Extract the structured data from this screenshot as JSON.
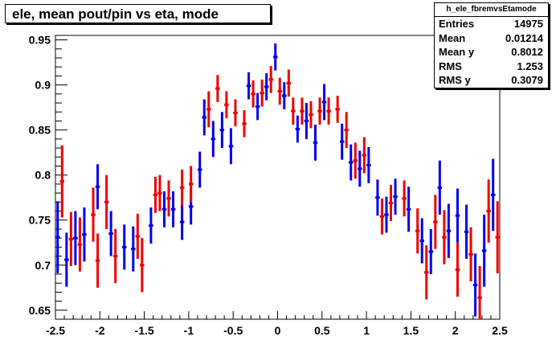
{
  "chart_data": {
    "type": "scatter",
    "title": "ele, mean pout/pin vs eta, mode",
    "xlabel": "",
    "ylabel": "",
    "xlim": [
      -2.5,
      2.5
    ],
    "ylim": [
      0.64,
      0.955
    ],
    "xticks": [
      "-2.5",
      "-2",
      "-1.5",
      "-1",
      "-0.5",
      "0",
      "0.5",
      "1",
      "1.5",
      "2",
      "2.5"
    ],
    "yticks": [
      "0.65",
      "0.7",
      "0.75",
      "0.8",
      "0.85",
      "0.9",
      "0.95"
    ],
    "bin_half_width": 0.025,
    "series": [
      {
        "color": "#0000ee",
        "points": [
          {
            "x": -2.475,
            "y": 0.731,
            "err": 0.04
          },
          {
            "x": -2.375,
            "y": 0.706,
            "err": 0.03
          },
          {
            "x": -2.275,
            "y": 0.73,
            "err": 0.03
          },
          {
            "x": -2.175,
            "y": 0.734,
            "err": 0.03
          },
          {
            "x": -2.025,
            "y": 0.787,
            "err": 0.025
          },
          {
            "x": -1.875,
            "y": 0.735,
            "err": 0.025
          },
          {
            "x": -1.725,
            "y": 0.72,
            "err": 0.025
          },
          {
            "x": -1.625,
            "y": 0.718,
            "err": 0.025
          },
          {
            "x": -1.425,
            "y": 0.744,
            "err": 0.02
          },
          {
            "x": -1.275,
            "y": 0.762,
            "err": 0.02
          },
          {
            "x": -1.175,
            "y": 0.762,
            "err": 0.02
          },
          {
            "x": -1.075,
            "y": 0.748,
            "err": 0.02
          },
          {
            "x": -0.975,
            "y": 0.765,
            "err": 0.02
          },
          {
            "x": -0.875,
            "y": 0.806,
            "err": 0.02
          },
          {
            "x": -0.825,
            "y": 0.864,
            "err": 0.02
          },
          {
            "x": -0.725,
            "y": 0.84,
            "err": 0.02
          },
          {
            "x": -0.625,
            "y": 0.85,
            "err": 0.02
          },
          {
            "x": -0.525,
            "y": 0.832,
            "err": 0.02
          },
          {
            "x": -0.325,
            "y": 0.899,
            "err": 0.015
          },
          {
            "x": -0.225,
            "y": 0.876,
            "err": 0.015
          },
          {
            "x": -0.125,
            "y": 0.898,
            "err": 0.015
          },
          {
            "x": -0.025,
            "y": 0.931,
            "err": 0.015
          },
          {
            "x": 0.075,
            "y": 0.888,
            "err": 0.015
          },
          {
            "x": 0.225,
            "y": 0.851,
            "err": 0.015
          },
          {
            "x": 0.325,
            "y": 0.86,
            "err": 0.02
          },
          {
            "x": 0.425,
            "y": 0.836,
            "err": 0.02
          },
          {
            "x": 0.525,
            "y": 0.881,
            "err": 0.02
          },
          {
            "x": 0.725,
            "y": 0.837,
            "err": 0.02
          },
          {
            "x": 0.825,
            "y": 0.814,
            "err": 0.02
          },
          {
            "x": 0.925,
            "y": 0.807,
            "err": 0.02
          },
          {
            "x": 1.025,
            "y": 0.811,
            "err": 0.02
          },
          {
            "x": 1.125,
            "y": 0.775,
            "err": 0.02
          },
          {
            "x": 1.225,
            "y": 0.756,
            "err": 0.02
          },
          {
            "x": 1.325,
            "y": 0.776,
            "err": 0.02
          },
          {
            "x": 1.475,
            "y": 0.762,
            "err": 0.025
          },
          {
            "x": 1.625,
            "y": 0.727,
            "err": 0.025
          },
          {
            "x": 1.725,
            "y": 0.715,
            "err": 0.025
          },
          {
            "x": 1.825,
            "y": 0.786,
            "err": 0.03
          },
          {
            "x": 1.925,
            "y": 0.738,
            "err": 0.03
          },
          {
            "x": 2.025,
            "y": 0.755,
            "err": 0.03
          },
          {
            "x": 2.125,
            "y": 0.737,
            "err": 0.03
          },
          {
            "x": 2.225,
            "y": 0.678,
            "err": 0.035
          },
          {
            "x": 2.325,
            "y": 0.716,
            "err": 0.04
          },
          {
            "x": 2.425,
            "y": 0.778,
            "err": 0.04
          }
        ]
      },
      {
        "color": "#ee0000",
        "points": [
          {
            "x": -2.425,
            "y": 0.793,
            "err": 0.04
          },
          {
            "x": -2.325,
            "y": 0.729,
            "err": 0.03
          },
          {
            "x": -2.225,
            "y": 0.723,
            "err": 0.03
          },
          {
            "x": -2.075,
            "y": 0.756,
            "err": 0.03
          },
          {
            "x": -2.025,
            "y": 0.705,
            "err": 0.03
          },
          {
            "x": -1.925,
            "y": 0.77,
            "err": 0.03
          },
          {
            "x": -1.825,
            "y": 0.71,
            "err": 0.03
          },
          {
            "x": -1.575,
            "y": 0.732,
            "err": 0.025
          },
          {
            "x": -1.525,
            "y": 0.7,
            "err": 0.03
          },
          {
            "x": -1.375,
            "y": 0.778,
            "err": 0.02
          },
          {
            "x": -1.325,
            "y": 0.78,
            "err": 0.02
          },
          {
            "x": -1.225,
            "y": 0.774,
            "err": 0.02
          },
          {
            "x": -1.075,
            "y": 0.786,
            "err": 0.02
          },
          {
            "x": -0.975,
            "y": 0.79,
            "err": 0.02
          },
          {
            "x": -0.775,
            "y": 0.873,
            "err": 0.02
          },
          {
            "x": -0.675,
            "y": 0.896,
            "err": 0.015
          },
          {
            "x": -0.575,
            "y": 0.878,
            "err": 0.015
          },
          {
            "x": -0.475,
            "y": 0.869,
            "err": 0.015
          },
          {
            "x": -0.375,
            "y": 0.857,
            "err": 0.015
          },
          {
            "x": -0.275,
            "y": 0.89,
            "err": 0.015
          },
          {
            "x": -0.175,
            "y": 0.891,
            "err": 0.015
          },
          {
            "x": -0.075,
            "y": 0.906,
            "err": 0.015
          },
          {
            "x": 0.025,
            "y": 0.893,
            "err": 0.015
          },
          {
            "x": 0.125,
            "y": 0.902,
            "err": 0.015
          },
          {
            "x": 0.175,
            "y": 0.871,
            "err": 0.015
          },
          {
            "x": 0.275,
            "y": 0.871,
            "err": 0.015
          },
          {
            "x": 0.375,
            "y": 0.867,
            "err": 0.015
          },
          {
            "x": 0.475,
            "y": 0.871,
            "err": 0.015
          },
          {
            "x": 0.575,
            "y": 0.871,
            "err": 0.015
          },
          {
            "x": 0.675,
            "y": 0.873,
            "err": 0.015
          },
          {
            "x": 0.775,
            "y": 0.85,
            "err": 0.02
          },
          {
            "x": 0.875,
            "y": 0.816,
            "err": 0.02
          },
          {
            "x": 0.975,
            "y": 0.822,
            "err": 0.02
          },
          {
            "x": 1.175,
            "y": 0.754,
            "err": 0.02
          },
          {
            "x": 1.275,
            "y": 0.769,
            "err": 0.02
          },
          {
            "x": 1.425,
            "y": 0.774,
            "err": 0.02
          },
          {
            "x": 1.575,
            "y": 0.738,
            "err": 0.025
          },
          {
            "x": 1.675,
            "y": 0.692,
            "err": 0.03
          },
          {
            "x": 1.775,
            "y": 0.748,
            "err": 0.03
          },
          {
            "x": 1.875,
            "y": 0.731,
            "err": 0.03
          },
          {
            "x": 2.025,
            "y": 0.695,
            "err": 0.03
          },
          {
            "x": 2.175,
            "y": 0.712,
            "err": 0.03
          },
          {
            "x": 2.275,
            "y": 0.664,
            "err": 0.035
          },
          {
            "x": 2.375,
            "y": 0.76,
            "err": 0.035
          },
          {
            "x": 2.475,
            "y": 0.731,
            "err": 0.04
          }
        ]
      }
    ],
    "stats": {
      "name": "h_ele_fbremvsEtamode",
      "rows": [
        {
          "label": "Entries",
          "value": "14975"
        },
        {
          "label": "Mean",
          "value": "0.01214"
        },
        {
          "label": "Mean y",
          "value": "0.8012"
        },
        {
          "label": "RMS",
          "value": "1.253"
        },
        {
          "label": "RMS y",
          "value": "0.3079"
        }
      ]
    }
  }
}
